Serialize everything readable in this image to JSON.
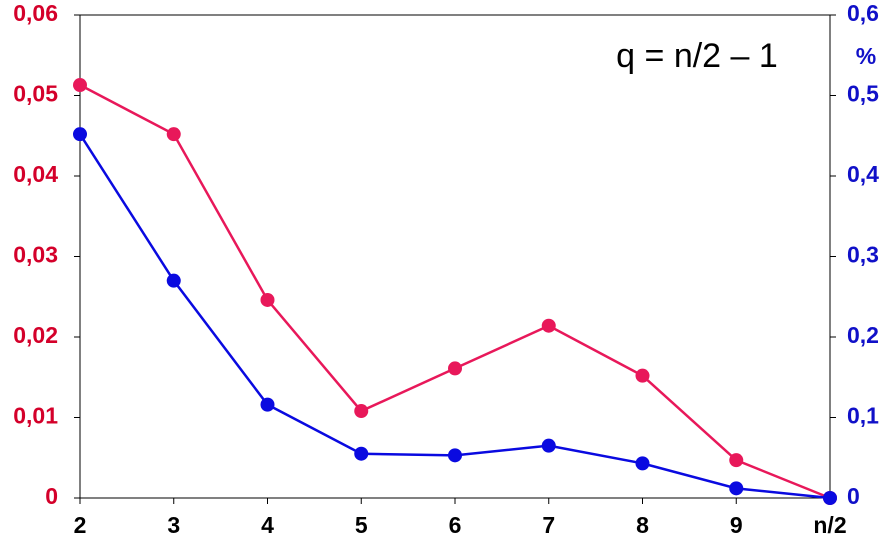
{
  "chart_data": {
    "type": "line",
    "annotation": "q = n/2 – 1",
    "categories": [
      "2",
      "3",
      "4",
      "5",
      "6",
      "7",
      "8",
      "9",
      "n/2"
    ],
    "series": [
      {
        "color": "#e8185a",
        "values": [
          0.0513,
          0.0452,
          0.0246,
          0.0108,
          0.0161,
          0.0214,
          0.0152,
          0.0047,
          0
        ]
      },
      {
        "color": "#0a0ae0",
        "axis": "y2",
        "values": [
          0.452,
          0.27,
          0.116,
          0.055,
          0.053,
          0.065,
          0.043,
          0.012,
          0
        ]
      }
    ],
    "ylim": [
      0,
      0.06
    ],
    "yticks": [
      0,
      {
        "value": 0.01,
        "label": "0,01"
      },
      {
        "value": 0.02,
        "label": "0,02"
      },
      {
        "value": 0.03,
        "label": "0,03"
      },
      {
        "value": 0.04,
        "label": "0,04"
      },
      {
        "value": 0.05,
        "label": "0,05"
      },
      {
        "value": 0.06,
        "label": "0,06"
      }
    ],
    "y_color": "#d4002a",
    "y2label": "%",
    "y2lim": [
      0,
      0.6
    ],
    "y2ticks": [
      0,
      {
        "value": 0.1,
        "label": "0,1"
      },
      {
        "value": 0.2,
        "label": "0,2"
      },
      {
        "value": 0.3,
        "label": "0,3"
      },
      {
        "value": 0.4,
        "label": "0,4"
      },
      {
        "value": 0.5,
        "label": "0,5"
      },
      {
        "value": 0.6,
        "label": "0,6"
      }
    ],
    "y2_color": "#1010c8"
  }
}
